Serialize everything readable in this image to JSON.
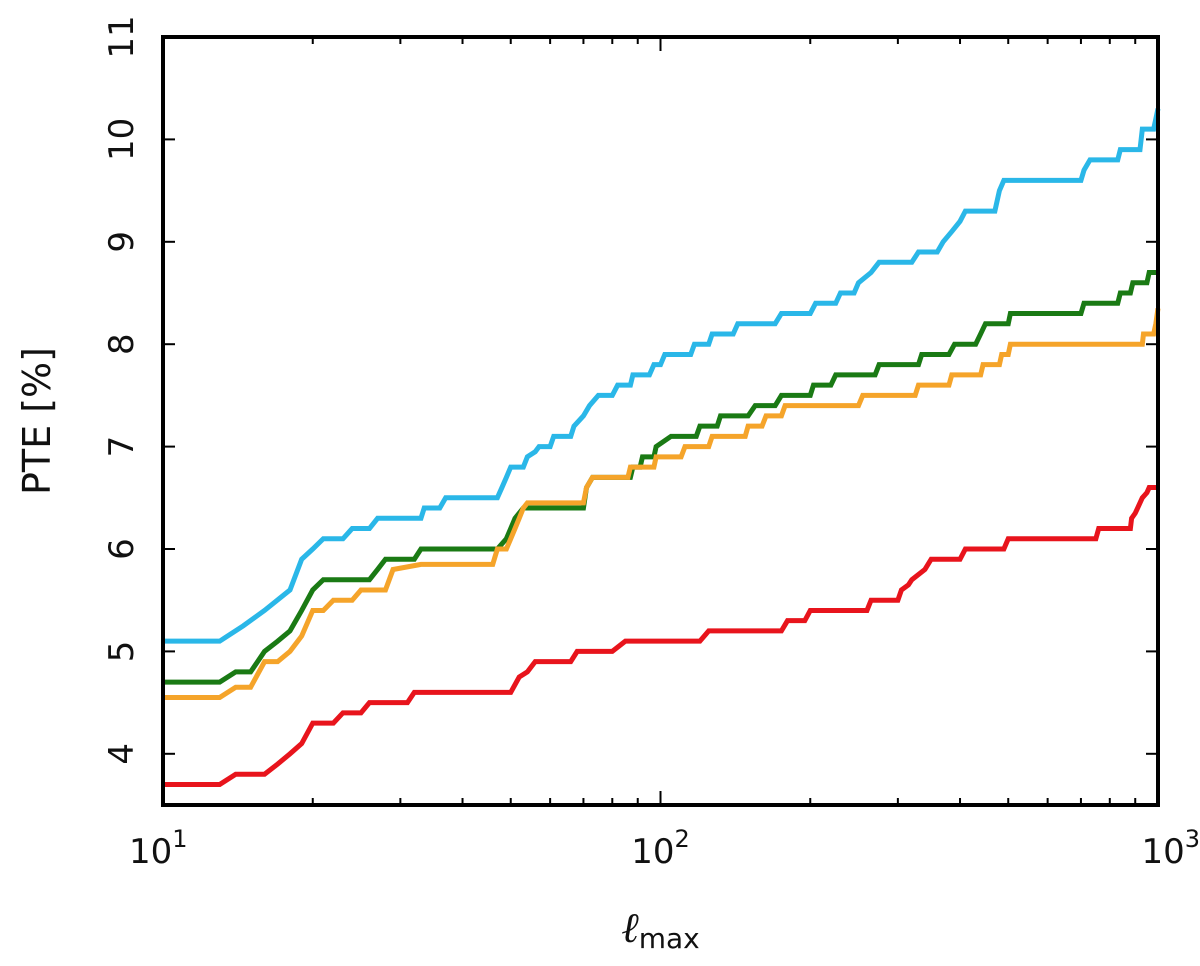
{
  "chart_data": {
    "type": "line",
    "xscale": "log",
    "xlim": [
      10,
      1000
    ],
    "ylim": [
      3.5,
      11
    ],
    "xlabel_main": "ℓ",
    "xlabel_sub": "max",
    "ylabel": "PTE [%]",
    "x_ticks": [
      {
        "value": 10,
        "base": "10",
        "exp": "1"
      },
      {
        "value": 100,
        "base": "10",
        "exp": "2"
      },
      {
        "value": 1000,
        "base": "10",
        "exp": "3"
      }
    ],
    "y_ticks": [
      "4",
      "5",
      "6",
      "7",
      "8",
      "9",
      "10",
      "11"
    ],
    "series": [
      {
        "color": "#2ab7e8",
        "points": [
          [
            10,
            5.1
          ],
          [
            13,
            5.1
          ],
          [
            14.5,
            5.25
          ],
          [
            16,
            5.4
          ],
          [
            18,
            5.6
          ],
          [
            19,
            5.9
          ],
          [
            20,
            6.0
          ],
          [
            21,
            6.1
          ],
          [
            23,
            6.1
          ],
          [
            24,
            6.2
          ],
          [
            26,
            6.2
          ],
          [
            27,
            6.3
          ],
          [
            30,
            6.3
          ],
          [
            33,
            6.3
          ],
          [
            33.5,
            6.4
          ],
          [
            36,
            6.4
          ],
          [
            37,
            6.5
          ],
          [
            47,
            6.5
          ],
          [
            48,
            6.6
          ],
          [
            49,
            6.7
          ],
          [
            50,
            6.8
          ],
          [
            53,
            6.8
          ],
          [
            54,
            6.9
          ],
          [
            56,
            6.95
          ],
          [
            57,
            7.0
          ],
          [
            60,
            7.0
          ],
          [
            61,
            7.1
          ],
          [
            66,
            7.1
          ],
          [
            67,
            7.2
          ],
          [
            70,
            7.3
          ],
          [
            72,
            7.4
          ],
          [
            75,
            7.5
          ],
          [
            80,
            7.5
          ],
          [
            82,
            7.6
          ],
          [
            87,
            7.6
          ],
          [
            88,
            7.7
          ],
          [
            95,
            7.7
          ],
          [
            97,
            7.8
          ],
          [
            100,
            7.8
          ],
          [
            102,
            7.9
          ],
          [
            115,
            7.9
          ],
          [
            117,
            8.0
          ],
          [
            125,
            8.0
          ],
          [
            127,
            8.1
          ],
          [
            140,
            8.1
          ],
          [
            143,
            8.2
          ],
          [
            170,
            8.2
          ],
          [
            175,
            8.3
          ],
          [
            200,
            8.3
          ],
          [
            205,
            8.4
          ],
          [
            225,
            8.4
          ],
          [
            230,
            8.5
          ],
          [
            245,
            8.5
          ],
          [
            250,
            8.6
          ],
          [
            265,
            8.7
          ],
          [
            275,
            8.8
          ],
          [
            320,
            8.8
          ],
          [
            330,
            8.9
          ],
          [
            360,
            8.9
          ],
          [
            370,
            9.0
          ],
          [
            385,
            9.1
          ],
          [
            400,
            9.2
          ],
          [
            410,
            9.3
          ],
          [
            470,
            9.3
          ],
          [
            480,
            9.5
          ],
          [
            490,
            9.6
          ],
          [
            700,
            9.6
          ],
          [
            710,
            9.7
          ],
          [
            730,
            9.8
          ],
          [
            830,
            9.8
          ],
          [
            840,
            9.9
          ],
          [
            920,
            9.9
          ],
          [
            930,
            10.1
          ],
          [
            980,
            10.1
          ],
          [
            990,
            10.2
          ],
          [
            1000,
            10.3
          ]
        ]
      },
      {
        "color": "#1a7a14",
        "points": [
          [
            10,
            4.7
          ],
          [
            13,
            4.7
          ],
          [
            14,
            4.8
          ],
          [
            15,
            4.8
          ],
          [
            16,
            5.0
          ],
          [
            17,
            5.1
          ],
          [
            18,
            5.2
          ],
          [
            19,
            5.4
          ],
          [
            20,
            5.6
          ],
          [
            21,
            5.7
          ],
          [
            26,
            5.7
          ],
          [
            27,
            5.8
          ],
          [
            28,
            5.9
          ],
          [
            32,
            5.9
          ],
          [
            33,
            6.0
          ],
          [
            45,
            6.0
          ],
          [
            47,
            6.0
          ],
          [
            49,
            6.1
          ],
          [
            50,
            6.2
          ],
          [
            51,
            6.3
          ],
          [
            53,
            6.4
          ],
          [
            55,
            6.4
          ],
          [
            70,
            6.4
          ],
          [
            71,
            6.6
          ],
          [
            73,
            6.7
          ],
          [
            87,
            6.7
          ],
          [
            88,
            6.8
          ],
          [
            91,
            6.8
          ],
          [
            92,
            6.9
          ],
          [
            97,
            6.9
          ],
          [
            98,
            7.0
          ],
          [
            105,
            7.1
          ],
          [
            118,
            7.1
          ],
          [
            120,
            7.2
          ],
          [
            130,
            7.2
          ],
          [
            132,
            7.3
          ],
          [
            150,
            7.3
          ],
          [
            155,
            7.4
          ],
          [
            170,
            7.4
          ],
          [
            175,
            7.5
          ],
          [
            200,
            7.5
          ],
          [
            203,
            7.6
          ],
          [
            220,
            7.6
          ],
          [
            225,
            7.7
          ],
          [
            270,
            7.7
          ],
          [
            275,
            7.8
          ],
          [
            330,
            7.8
          ],
          [
            335,
            7.9
          ],
          [
            380,
            7.9
          ],
          [
            390,
            8.0
          ],
          [
            430,
            8.0
          ],
          [
            440,
            8.1
          ],
          [
            450,
            8.2
          ],
          [
            500,
            8.2
          ],
          [
            505,
            8.3
          ],
          [
            700,
            8.3
          ],
          [
            710,
            8.4
          ],
          [
            830,
            8.4
          ],
          [
            840,
            8.5
          ],
          [
            880,
            8.5
          ],
          [
            890,
            8.6
          ],
          [
            950,
            8.6
          ],
          [
            960,
            8.7
          ],
          [
            1000,
            8.7
          ]
        ]
      },
      {
        "color": "#f5a42a",
        "points": [
          [
            10,
            4.55
          ],
          [
            13,
            4.55
          ],
          [
            14,
            4.65
          ],
          [
            15,
            4.65
          ],
          [
            16,
            4.9
          ],
          [
            17,
            4.9
          ],
          [
            18,
            5.0
          ],
          [
            19,
            5.15
          ],
          [
            20,
            5.4
          ],
          [
            21,
            5.4
          ],
          [
            22,
            5.5
          ],
          [
            24,
            5.5
          ],
          [
            25,
            5.6
          ],
          [
            28,
            5.6
          ],
          [
            29,
            5.8
          ],
          [
            33,
            5.85
          ],
          [
            46,
            5.85
          ],
          [
            47,
            6.0
          ],
          [
            49,
            6.0
          ],
          [
            50,
            6.1
          ],
          [
            51,
            6.2
          ],
          [
            52,
            6.3
          ],
          [
            53,
            6.4
          ],
          [
            54,
            6.45
          ],
          [
            70,
            6.45
          ],
          [
            71,
            6.6
          ],
          [
            73,
            6.7
          ],
          [
            86,
            6.7
          ],
          [
            87,
            6.8
          ],
          [
            97,
            6.8
          ],
          [
            98,
            6.9
          ],
          [
            110,
            6.9
          ],
          [
            112,
            7.0
          ],
          [
            125,
            7.0
          ],
          [
            127,
            7.1
          ],
          [
            148,
            7.1
          ],
          [
            150,
            7.2
          ],
          [
            160,
            7.2
          ],
          [
            163,
            7.3
          ],
          [
            175,
            7.3
          ],
          [
            178,
            7.4
          ],
          [
            250,
            7.4
          ],
          [
            255,
            7.5
          ],
          [
            325,
            7.5
          ],
          [
            330,
            7.6
          ],
          [
            380,
            7.6
          ],
          [
            385,
            7.7
          ],
          [
            440,
            7.7
          ],
          [
            445,
            7.8
          ],
          [
            480,
            7.8
          ],
          [
            485,
            7.9
          ],
          [
            500,
            7.9
          ],
          [
            505,
            8.0
          ],
          [
            930,
            8.0
          ],
          [
            935,
            8.1
          ],
          [
            980,
            8.1
          ],
          [
            990,
            8.2
          ],
          [
            1000,
            8.35
          ]
        ]
      },
      {
        "color": "#e8141c",
        "points": [
          [
            10,
            3.7
          ],
          [
            13,
            3.7
          ],
          [
            14,
            3.8
          ],
          [
            16,
            3.8
          ],
          [
            17,
            3.9
          ],
          [
            18,
            4.0
          ],
          [
            19,
            4.1
          ],
          [
            20,
            4.3
          ],
          [
            22,
            4.3
          ],
          [
            23,
            4.4
          ],
          [
            25,
            4.4
          ],
          [
            26,
            4.5
          ],
          [
            31,
            4.5
          ],
          [
            32,
            4.6
          ],
          [
            50,
            4.6
          ],
          [
            52,
            4.75
          ],
          [
            54,
            4.8
          ],
          [
            56,
            4.9
          ],
          [
            66,
            4.9
          ],
          [
            68,
            5.0
          ],
          [
            80,
            5.0
          ],
          [
            85,
            5.1
          ],
          [
            120,
            5.1
          ],
          [
            125,
            5.2
          ],
          [
            175,
            5.2
          ],
          [
            180,
            5.3
          ],
          [
            195,
            5.3
          ],
          [
            200,
            5.4
          ],
          [
            260,
            5.4
          ],
          [
            265,
            5.5
          ],
          [
            300,
            5.5
          ],
          [
            305,
            5.6
          ],
          [
            315,
            5.65
          ],
          [
            320,
            5.7
          ],
          [
            340,
            5.8
          ],
          [
            350,
            5.9
          ],
          [
            400,
            5.9
          ],
          [
            410,
            6.0
          ],
          [
            490,
            6.0
          ],
          [
            500,
            6.1
          ],
          [
            750,
            6.1
          ],
          [
            760,
            6.2
          ],
          [
            880,
            6.2
          ],
          [
            885,
            6.3
          ],
          [
            900,
            6.35
          ],
          [
            910,
            6.4
          ],
          [
            930,
            6.5
          ],
          [
            950,
            6.55
          ],
          [
            960,
            6.6
          ],
          [
            1000,
            6.6
          ]
        ]
      }
    ]
  }
}
